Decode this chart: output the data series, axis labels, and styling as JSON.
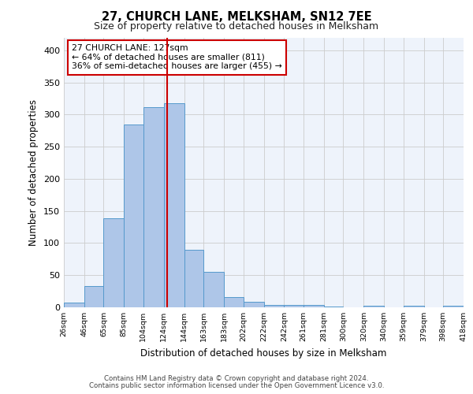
{
  "title1": "27, CHURCH LANE, MELKSHAM, SN12 7EE",
  "title2": "Size of property relative to detached houses in Melksham",
  "xlabel": "Distribution of detached houses by size in Melksham",
  "ylabel": "Number of detached properties",
  "footnote1": "Contains HM Land Registry data © Crown copyright and database right 2024.",
  "footnote2": "Contains public sector information licensed under the Open Government Licence v3.0.",
  "annotation_title": "27 CHURCH LANE: 127sqm",
  "annotation_line1": "← 64% of detached houses are smaller (811)",
  "annotation_line2": "36% of semi-detached houses are larger (455) →",
  "bar_color": "#aec6e8",
  "bar_edge_color": "#5599cc",
  "vline_color": "#cc0000",
  "vline_x": 127,
  "annotation_box_color": "#cc0000",
  "grid_color": "#cccccc",
  "bg_color": "#eef3fb",
  "bins": [
    26,
    46,
    65,
    85,
    104,
    124,
    144,
    163,
    183,
    202,
    222,
    242,
    261,
    281,
    300,
    320,
    340,
    359,
    379,
    398,
    418
  ],
  "counts": [
    7,
    33,
    139,
    285,
    312,
    317,
    90,
    55,
    16,
    9,
    4,
    4,
    4,
    1,
    0,
    3,
    0,
    2,
    0,
    2
  ],
  "ylim": [
    0,
    420
  ],
  "yticks": [
    0,
    50,
    100,
    150,
    200,
    250,
    300,
    350,
    400
  ],
  "figsize": [
    6.0,
    5.0
  ],
  "dpi": 100
}
